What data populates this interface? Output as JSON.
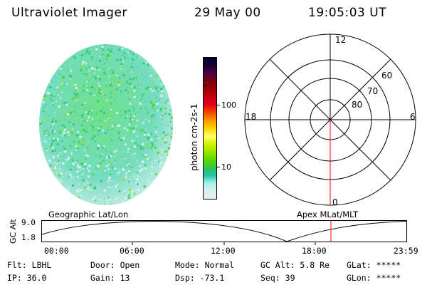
{
  "header": {
    "title": "Ultraviolet Imager",
    "date": "29 May 00",
    "time": "19:05:03 UT"
  },
  "colorbar": {
    "unit_label": "photon cm-2s-1",
    "ticks": [
      "100",
      "10"
    ],
    "colors": [
      "#000030",
      "#1a0033",
      "#4b0040",
      "#7a0010",
      "#a00008",
      "#c80010",
      "#e3001c",
      "#f24a00",
      "#f89800",
      "#fcd200",
      "#ffff66",
      "#d4f400",
      "#9be600",
      "#5fd800",
      "#2ec845",
      "#22c0a8",
      "#a8f0e8",
      "#d8f0f0",
      "#e8eef2"
    ]
  },
  "left_image": {
    "caption": "Geographic Lat/Lon"
  },
  "polar_grid": {
    "caption": "Apex MLat/MLT",
    "mlt_labels": {
      "top": "12",
      "left": "18",
      "right": "6",
      "bottom": "0"
    },
    "lat_labels": [
      "60",
      "70",
      "80"
    ]
  },
  "timeline": {
    "axis_label": "GC Alt",
    "y_ticks": [
      "9.0",
      "1.8"
    ],
    "x_ticks": [
      "00:00",
      "06:00",
      "12:00",
      "18:00",
      "23:59"
    ],
    "current_time_color": "#ff0000"
  },
  "status": {
    "row1": [
      {
        "label": "Flt:",
        "value": "LBHL"
      },
      {
        "label": "Door:",
        "value": "Open"
      },
      {
        "label": "Mode:",
        "value": "Normal"
      },
      {
        "label": "GC Alt:",
        "value": "5.8 Re"
      },
      {
        "label": "GLat:",
        "value": "*****"
      }
    ],
    "row2": [
      {
        "label": "IP:",
        "value": "36.0"
      },
      {
        "label": "Gain:",
        "value": "13"
      },
      {
        "label": "Dsp:",
        "value": "-73.1"
      },
      {
        "label": "Seq:",
        "value": "39"
      },
      {
        "label": "GLon:",
        "value": "*****"
      }
    ]
  }
}
